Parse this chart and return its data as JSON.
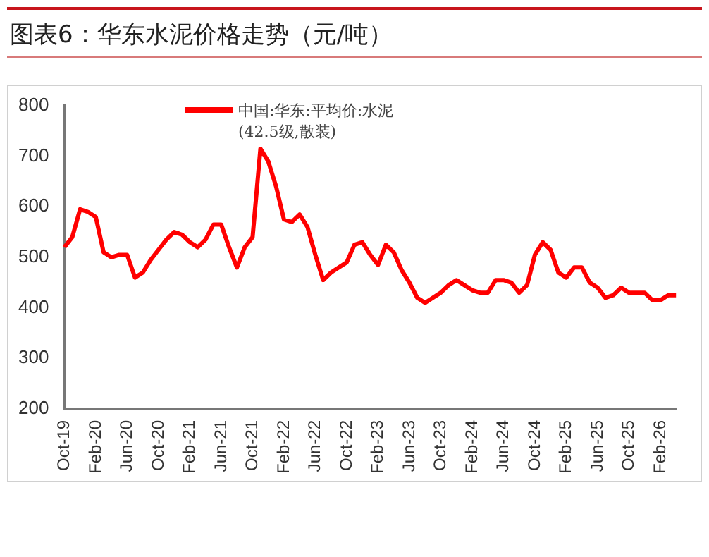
{
  "chart_data": {
    "type": "line",
    "title": "图表6：华东水泥价格走势（元/吨）",
    "categories": [
      "Oct-19",
      null,
      null,
      null,
      "Feb-20",
      null,
      null,
      null,
      "Jun-20",
      null,
      null,
      null,
      "Oct-20",
      null,
      null,
      null,
      "Feb-21",
      null,
      null,
      null,
      "Jun-21",
      null,
      null,
      null,
      "Oct-21",
      null,
      null,
      null,
      "Feb-22",
      null,
      null,
      null,
      "Jun-22",
      null,
      null,
      null,
      "Oct-22",
      null,
      null,
      null,
      "Feb-23",
      null,
      null,
      null,
      "Jun-23",
      null,
      null,
      null,
      "Oct-23",
      null,
      null,
      null,
      "Feb-24",
      null,
      null,
      null,
      "Jun-24",
      null,
      null,
      null,
      "Oct-24",
      null,
      null,
      null,
      "Feb-25",
      null,
      null,
      null,
      "Jun-25",
      null,
      null,
      null,
      "Oct-25",
      null,
      null,
      null,
      "Feb-26",
      null,
      null
    ],
    "series": [
      {
        "name": "中国:华东:平均价:水泥(42.5级,散装)",
        "color": "#ff0000",
        "values": [
          520,
          540,
          595,
          590,
          580,
          510,
          500,
          505,
          505,
          460,
          470,
          495,
          515,
          535,
          550,
          545,
          530,
          520,
          535,
          565,
          565,
          520,
          480,
          520,
          540,
          715,
          690,
          640,
          575,
          570,
          585,
          560,
          505,
          455,
          470,
          480,
          490,
          525,
          530,
          505,
          485,
          525,
          510,
          475,
          450,
          420,
          410,
          420,
          430,
          445,
          455,
          445,
          435,
          430,
          430,
          455,
          455,
          450,
          430,
          445,
          505,
          530,
          515,
          470,
          460,
          480,
          480,
          450,
          440,
          420,
          425,
          440,
          430,
          430,
          430,
          415,
          415,
          425,
          425
        ]
      }
    ],
    "ylim": [
      200,
      800
    ],
    "yticks": [
      200,
      300,
      400,
      500,
      600,
      700,
      800
    ],
    "grid": false,
    "legend": "top",
    "marker": "none",
    "line_style": "solid"
  }
}
